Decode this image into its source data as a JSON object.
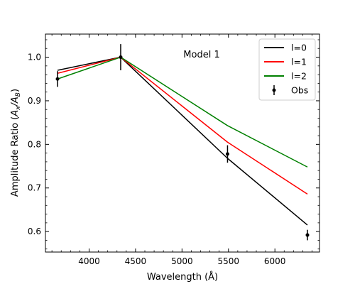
{
  "chart_data": {
    "type": "line",
    "xlabel": "Wavelength (Å)",
    "ylabel": "Amplitude Ratio (A_x/A_B)",
    "annotation": "Model 1",
    "xlim": [
      3530,
      6480
    ],
    "ylim": [
      0.553,
      1.053
    ],
    "x_ticks": [
      4000,
      4500,
      5000,
      5500,
      6000
    ],
    "y_ticks": [
      0.6,
      0.7,
      0.8,
      0.9,
      1.0
    ],
    "x_tick_labels": [
      "4000",
      "4500",
      "5000",
      "5500",
      "6000"
    ],
    "y_tick_labels": [
      "0.6",
      "0.7",
      "0.8",
      "0.9",
      "1.0"
    ],
    "x": [
      3660,
      4340,
      5490,
      6350
    ],
    "series": [
      {
        "name": "l=0",
        "color": "#000000",
        "values": [
          0.97,
          1.0,
          0.768,
          0.615
        ]
      },
      {
        "name": "l=1",
        "color": "#ff0000",
        "values": [
          0.963,
          1.0,
          0.805,
          0.686
        ]
      },
      {
        "name": "l=2",
        "color": "#008000",
        "values": [
          0.95,
          1.0,
          0.843,
          0.748
        ]
      }
    ],
    "observations": {
      "name": "Obs",
      "color": "#000000",
      "x": [
        3660,
        4340,
        5490,
        6350
      ],
      "y": [
        0.95,
        1.0,
        0.778,
        0.592
      ],
      "yerr": [
        0.018,
        0.03,
        0.02,
        0.012
      ]
    },
    "legend_position": "top-right",
    "grid": false
  }
}
